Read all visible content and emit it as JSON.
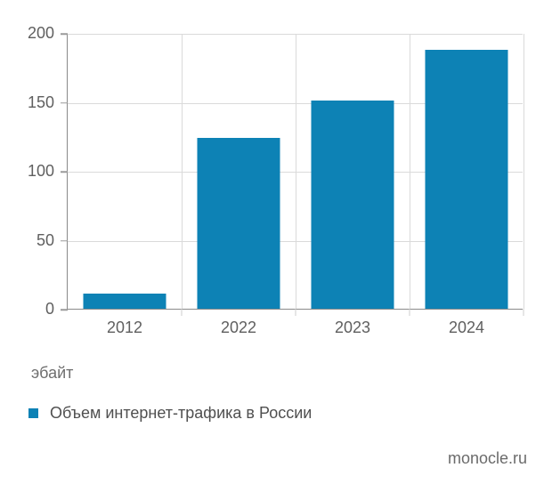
{
  "chart_data": {
    "type": "bar",
    "categories": [
      "2012",
      "2022",
      "2023",
      "2024"
    ],
    "values": [
      11,
      124,
      151,
      188
    ],
    "series_name": "Объем интернет-трафика в России",
    "title": "",
    "xlabel": "",
    "ylabel": "эбайт",
    "ylim": [
      0,
      200
    ],
    "yticks": [
      0,
      50,
      100,
      150,
      200
    ],
    "grid": true,
    "bar_color": "#0d82b5",
    "gridline_color": "#dadada",
    "axis_color": "#8a8a8a",
    "legend_position": "bottom-left"
  },
  "axis": {
    "unit_label": "эбайт"
  },
  "legend": {
    "label": "Объем интернет-трафика в России",
    "marker_color": "#0d82b5"
  },
  "source": {
    "label": "monocle.ru"
  }
}
